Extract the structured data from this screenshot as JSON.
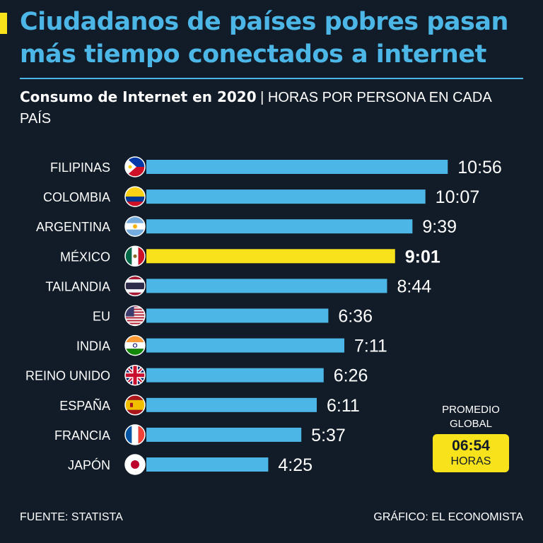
{
  "header": {
    "title": "Ciudadanos de países pobres pasan más tiempo conectados a internet",
    "subtitle_bold": "Consumo de Internet en 2020",
    "subtitle_rest": " | HORAS POR PERSONA EN CADA PAÍS"
  },
  "colors": {
    "bar": "#4cb7e6",
    "highlight": "#f7e21b",
    "background": "#121c28",
    "text": "#ffffff"
  },
  "chart_data": {
    "type": "bar",
    "orientation": "horizontal",
    "categories": [
      "FILIPINAS",
      "COLOMBIA",
      "ARGENTINA",
      "MÉXICO",
      "TAILANDIA",
      "EU",
      "INDIA",
      "REINO UNIDO",
      "ESPAÑA",
      "FRANCIA",
      "JAPÓN"
    ],
    "labels": [
      "10:56",
      "10:07",
      "9:39",
      "9:01",
      "8:44",
      "6:36",
      "7:11",
      "6:26",
      "6:11",
      "5:37",
      "4:25"
    ],
    "values": [
      10.93,
      10.12,
      9.65,
      9.02,
      8.73,
      6.6,
      7.18,
      6.43,
      6.18,
      5.62,
      4.42
    ],
    "highlight": "MÉXICO",
    "flags": [
      "philippines-flag-icon",
      "colombia-flag-icon",
      "argentina-flag-icon",
      "mexico-flag-icon",
      "thailand-flag-icon",
      "usa-flag-icon",
      "india-flag-icon",
      "uk-flag-icon",
      "spain-flag-icon",
      "france-flag-icon",
      "japan-flag-icon"
    ],
    "xlim": [
      0,
      11
    ],
    "grid": false
  },
  "average": {
    "label": "PROMEDIO GLOBAL",
    "value": "06:54",
    "unit": "HORAS"
  },
  "footer": {
    "source": "FUENTE: STATISTA",
    "credit": "GRÁFICO: EL ECONOMISTA"
  }
}
